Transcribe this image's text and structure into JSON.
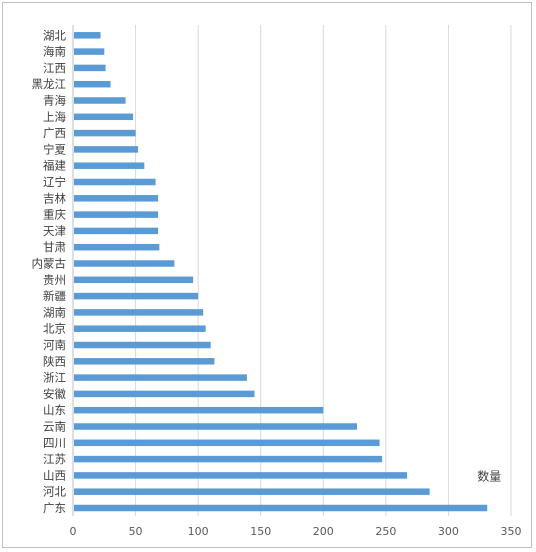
{
  "chart_data": {
    "type": "bar",
    "orientation": "horizontal",
    "categories": [
      "广东",
      "河北",
      "山西",
      "江苏",
      "四川",
      "云南",
      "山东",
      "安徽",
      "浙江",
      "陕西",
      "河南",
      "北京",
      "湖南",
      "新疆",
      "贵州",
      "内蒙古",
      "甘肃",
      "天津",
      "重庆",
      "吉林",
      "辽宁",
      "福建",
      "宁夏",
      "广西",
      "上海",
      "青海",
      "黑龙江",
      "江西",
      "海南",
      "湖北"
    ],
    "series": [
      {
        "name": "数量",
        "values": [
          331,
          285,
          267,
          247,
          245,
          227,
          200,
          145,
          139,
          113,
          110,
          106,
          104,
          100,
          96,
          81,
          69,
          68,
          68,
          68,
          66,
          57,
          52,
          50,
          48,
          42,
          30,
          26,
          25,
          22
        ]
      }
    ],
    "xlim": [
      0,
      350
    ],
    "xticks": [
      0,
      50,
      100,
      150,
      200,
      250,
      300,
      350
    ],
    "grid": "vertical",
    "colors": {
      "bar": "#5b9bd5",
      "grid": "#d9d9d9",
      "axis": "#bfbfbf"
    },
    "legend": "none"
  }
}
